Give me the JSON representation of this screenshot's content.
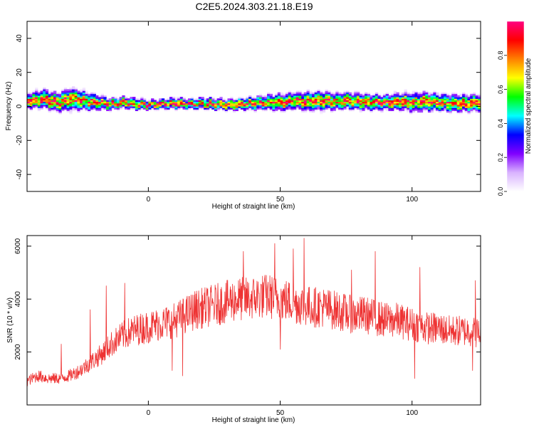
{
  "title": "C2E5.2024.303.21.18.E19",
  "chart_data": [
    {
      "type": "heatmap",
      "xlabel": "Height of straight line (km)",
      "ylabel": "Frequency (Hz)",
      "xlim": [
        -46,
        126
      ],
      "ylim": [
        -50,
        50
      ],
      "xticks": [
        0,
        50,
        100
      ],
      "yticks": [
        40,
        20,
        0,
        -20,
        -40
      ],
      "colorbar": {
        "label": "Normalized spectral amplitude",
        "range": [
          0,
          1
        ],
        "ticks": [
          "0.0",
          "0.2",
          "0.4",
          "0.6",
          "0.8"
        ],
        "tick_values": [
          0.0,
          0.2,
          0.4,
          0.6,
          0.8
        ],
        "colors": [
          "#ffffff",
          "#d9b3ff",
          "#8000ff",
          "#0000ff",
          "#00ffff",
          "#00ff00",
          "#ffff00",
          "#ff8000",
          "#ff0000",
          "#ff0080"
        ]
      },
      "ridge": {
        "x": [
          -46,
          -40,
          -35,
          -30,
          -25,
          -20,
          -15,
          -10,
          -5,
          0,
          5,
          10,
          15,
          20,
          25,
          30,
          35,
          40,
          45,
          50,
          55,
          60,
          65,
          70,
          75,
          80,
          85,
          90,
          95,
          100,
          105,
          110,
          115,
          120,
          126
        ],
        "center_hz": [
          3,
          4,
          2,
          4,
          3,
          2,
          1,
          2,
          1,
          0.5,
          1,
          1.5,
          1,
          1.5,
          1,
          0.5,
          1,
          1.5,
          2,
          2,
          3,
          2.5,
          3,
          2.5,
          3,
          2.5,
          2,
          2,
          2.5,
          2,
          2.5,
          2,
          1.5,
          1.5,
          2
        ],
        "halfwidth_hz": [
          4,
          5,
          5,
          6,
          5,
          4,
          3,
          3,
          3,
          2.5,
          2.5,
          3,
          2.5,
          3,
          3,
          3,
          3,
          3.5,
          4,
          4.5,
          4.5,
          5,
          5,
          4.5,
          4.5,
          4.5,
          4,
          4,
          4.5,
          5,
          5,
          4.5,
          4.5,
          4.5,
          4.5
        ]
      },
      "grid": false
    },
    {
      "type": "line",
      "xlabel": "Height of straight line (km)",
      "ylabel": "SNR (10 * v/v)",
      "xlim": [
        -46,
        126
      ],
      "ylim": [
        0,
        6400
      ],
      "xticks": [
        0,
        50,
        100
      ],
      "yticks": [
        2000,
        4000,
        6000
      ],
      "color": "#ee3333",
      "grid": false,
      "series": [
        {
          "x": [
            -46,
            -42,
            -38,
            -34,
            -30,
            -26,
            -22,
            -18,
            -14,
            -10,
            -6,
            -2,
            2,
            6,
            10,
            14,
            18,
            22,
            26,
            30,
            34,
            38,
            42,
            46,
            50,
            54,
            58,
            62,
            66,
            70,
            74,
            78,
            82,
            86,
            90,
            94,
            98,
            102,
            106,
            110,
            114,
            118,
            122,
            126
          ],
          "y": [
            900,
            1100,
            1000,
            1000,
            1100,
            1300,
            1600,
            1900,
            2300,
            2600,
            2800,
            2900,
            3000,
            3100,
            3200,
            3400,
            3600,
            3700,
            3800,
            3900,
            4000,
            4000,
            4100,
            4100,
            4000,
            3900,
            3800,
            3700,
            3700,
            3600,
            3500,
            3400,
            3400,
            3300,
            3200,
            3200,
            3100,
            3000,
            2900,
            2900,
            2800,
            2800,
            2800,
            2700
          ],
          "peaks": [
            {
              "x": -33,
              "y": 2300
            },
            {
              "x": -22,
              "y": 3600
            },
            {
              "x": -16,
              "y": 4500
            },
            {
              "x": -9,
              "y": 4600
            },
            {
              "x": 9,
              "y": 4300
            },
            {
              "x": 36,
              "y": 5800
            },
            {
              "x": 48,
              "y": 6100
            },
            {
              "x": 55,
              "y": 5900
            },
            {
              "x": 59,
              "y": 6300
            },
            {
              "x": 77,
              "y": 5100
            },
            {
              "x": 86,
              "y": 5800
            },
            {
              "x": 103,
              "y": 5200
            },
            {
              "x": 124,
              "y": 4700
            }
          ],
          "troughs": [
            {
              "x": 9,
              "y": 1300
            },
            {
              "x": 13,
              "y": 1100
            },
            {
              "x": 50,
              "y": 2100
            },
            {
              "x": 101,
              "y": 1000
            },
            {
              "x": 123,
              "y": 1300
            }
          ]
        }
      ]
    }
  ]
}
